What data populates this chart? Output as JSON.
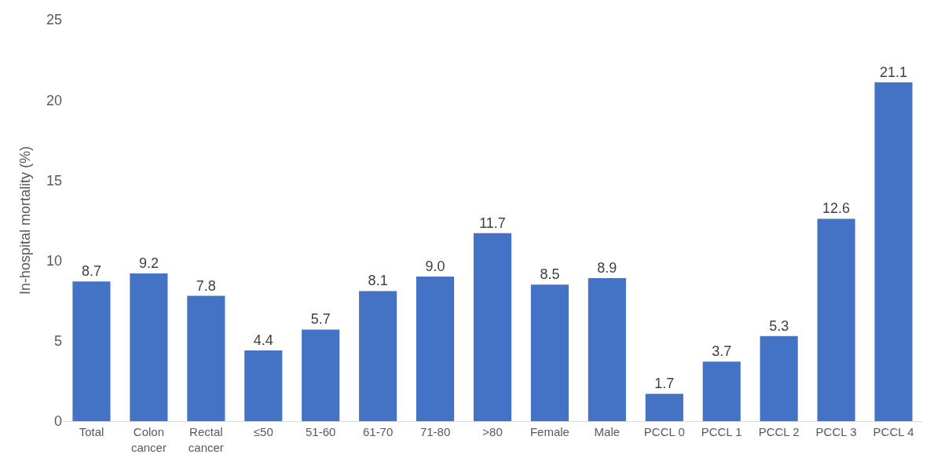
{
  "chart_data": {
    "type": "bar",
    "ylabel": "In-hospital mortality (%)",
    "categories": [
      "Total",
      "Colon cancer",
      "Rectal cancer",
      "≤50",
      "51-60",
      "61-70",
      "71-80",
      ">80",
      "Female",
      "Male",
      "PCCL 0",
      "PCCL 1",
      "PCCL 2",
      "PCCL 3",
      "PCCL 4"
    ],
    "values": [
      8.7,
      9.2,
      7.8,
      4.4,
      5.7,
      8.1,
      9.0,
      11.7,
      8.5,
      8.9,
      1.7,
      3.7,
      5.3,
      12.6,
      21.1
    ],
    "value_labels": [
      "8.7",
      "9.2",
      "7.8",
      "4.4",
      "5.7",
      "8.1",
      "9.0",
      "11.7",
      "8.5",
      "8.9",
      "1.7",
      "3.7",
      "5.3",
      "12.6",
      "21.1"
    ],
    "color": "#4472c4",
    "ylim": [
      0,
      25
    ],
    "yticks": [
      0,
      5,
      10,
      15,
      20,
      25
    ],
    "grid": false,
    "legend": false
  }
}
